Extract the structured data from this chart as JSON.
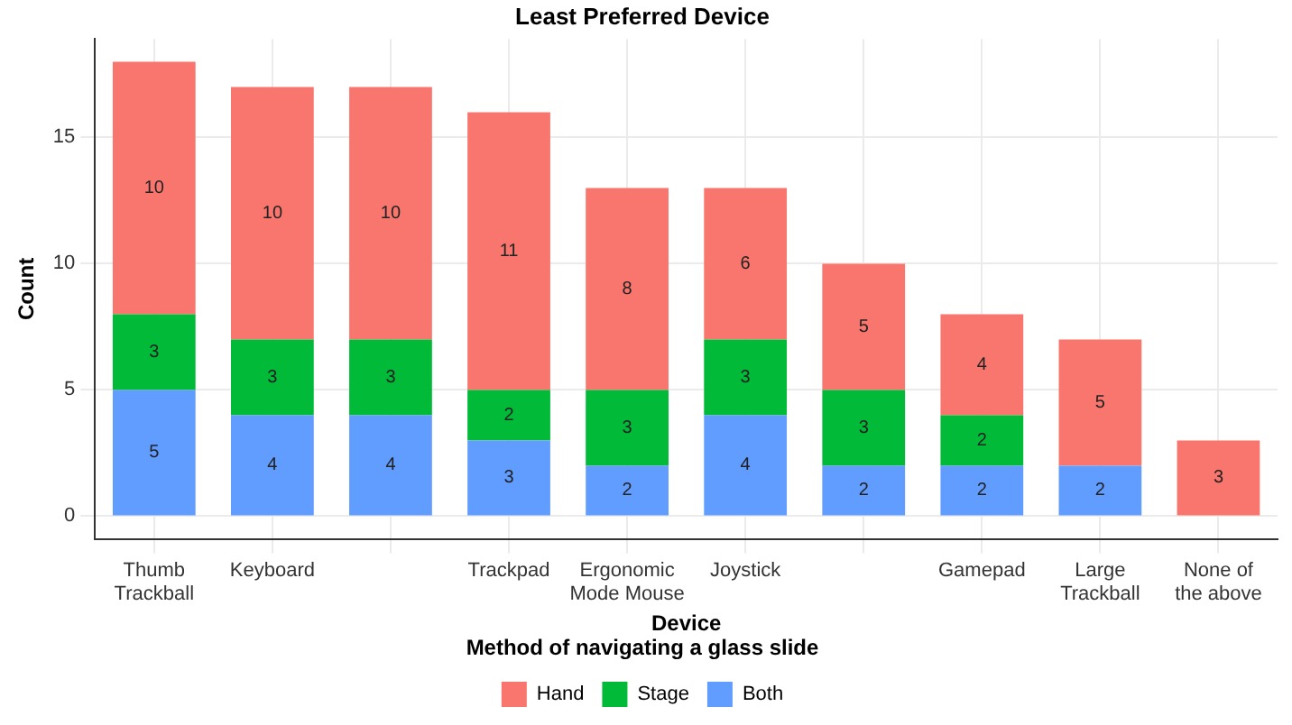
{
  "chart_data": {
    "type": "bar",
    "title": "Least Preferred Device",
    "xlabel": "Device",
    "ylabel": "Count",
    "legend_title": "Method of navigating a glass slide",
    "categories": [
      "Thumb\nTrackball",
      "Keyboard",
      null,
      "Trackpad",
      "Ergonomic\nMode Mouse",
      "Joystick",
      null,
      "Gamepad",
      "Large\nTrackball",
      "None of\nthe above"
    ],
    "series": [
      {
        "name": "Both",
        "color": "#619cff",
        "values": [
          5,
          4,
          4,
          3,
          2,
          4,
          2,
          2,
          2,
          null
        ]
      },
      {
        "name": "Stage",
        "color": "#00ba38",
        "values": [
          3,
          3,
          3,
          2,
          3,
          3,
          3,
          2,
          null,
          null
        ]
      },
      {
        "name": "Hand",
        "color": "#f8766d",
        "values": [
          10,
          10,
          10,
          11,
          8,
          6,
          5,
          4,
          5,
          3
        ]
      }
    ],
    "stacked": true,
    "data_labels": true,
    "ylim": [
      -0.9,
      18.9
    ],
    "yticks": [
      0,
      5,
      10,
      15
    ],
    "grid": true,
    "legend": "bottom"
  }
}
